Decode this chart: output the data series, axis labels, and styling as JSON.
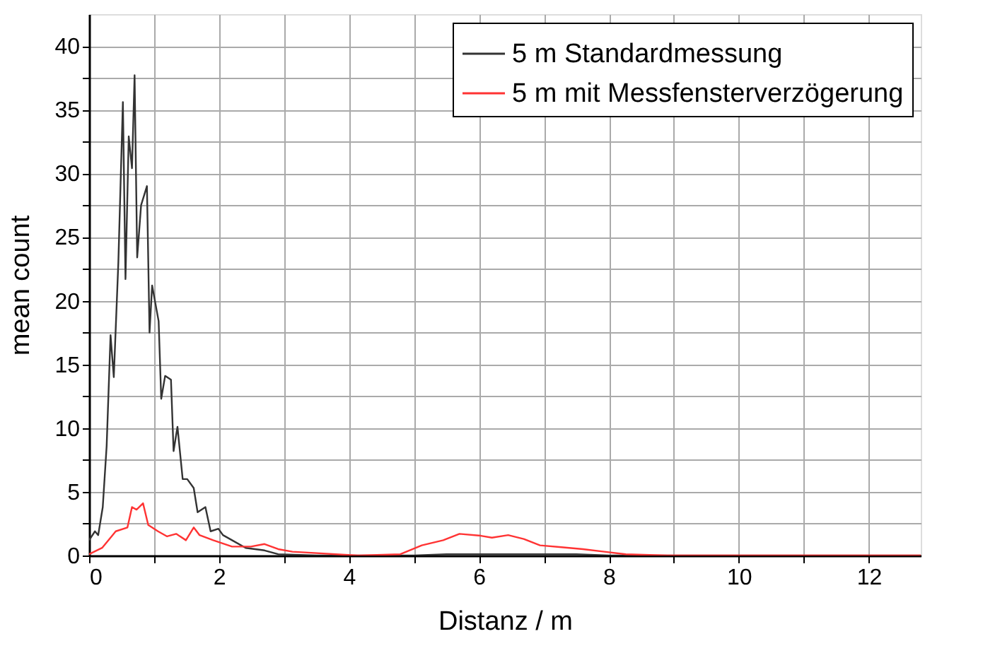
{
  "chart_data": {
    "type": "line",
    "xlabel": "Distanz / m",
    "ylabel": "mean count",
    "xlim": [
      0,
      12.8
    ],
    "ylim": [
      0,
      42.5
    ],
    "xticks": [
      0,
      {
        "value": 1,
        "label": null
      },
      2,
      {
        "value": 3,
        "label": null
      },
      4,
      {
        "value": 5,
        "label": null
      },
      6,
      {
        "value": 7,
        "label": null
      },
      8,
      {
        "value": 9,
        "label": null
      },
      10,
      {
        "value": 11,
        "label": null
      },
      12
    ],
    "yticks": [
      0,
      {
        "value": 2.5,
        "label": null
      },
      5,
      {
        "value": 7.5,
        "label": null
      },
      10,
      {
        "value": 12.5,
        "label": null
      },
      15,
      {
        "value": 17.5,
        "label": null
      },
      20,
      {
        "value": 22.5,
        "label": null
      },
      25,
      {
        "value": 27.5,
        "label": null
      },
      30,
      {
        "value": 32.5,
        "label": null
      },
      35,
      {
        "value": 37.5,
        "label": null
      },
      40
    ],
    "grid": true,
    "legend": "top right",
    "line_style": "solid",
    "marker": "none",
    "series": [
      {
        "name": "5 m Standardmessung",
        "color": "#333333",
        "x": [
          0,
          0.09,
          0.14,
          0.21,
          0.27,
          0.33,
          0.38,
          0.45,
          0.52,
          0.56,
          0.61,
          0.66,
          0.7,
          0.74,
          0.8,
          0.89,
          0.93,
          0.97,
          1.07,
          1.11,
          1.17,
          1.26,
          1.3,
          1.36,
          1.44,
          1.51,
          1.61,
          1.67,
          1.79,
          1.87,
          1.99,
          2.06,
          2.2,
          2.41,
          2.7,
          2.91,
          3.5,
          5,
          5.5,
          6.5,
          7.5,
          8,
          12.8
        ],
        "values": [
          1.2,
          1.9,
          1.6,
          3.8,
          8.6,
          17.3,
          14,
          23,
          35.6,
          21.7,
          32.9,
          30.4,
          37.7,
          23.4,
          27.5,
          29,
          17.5,
          21.2,
          18.4,
          12.3,
          14.1,
          13.8,
          8.2,
          10.1,
          6,
          6,
          5.3,
          3.4,
          3.8,
          1.9,
          2.1,
          1.6,
          1.2,
          0.6,
          0.4,
          0.1,
          0,
          0,
          0.1,
          0.1,
          0.1,
          0,
          0
        ]
      },
      {
        "name": "5 m mit Messfensterverzögerung",
        "color": "#ff3333",
        "x": [
          0,
          0.2,
          0.33,
          0.41,
          0.59,
          0.66,
          0.73,
          0.83,
          0.91,
          1.06,
          1.2,
          1.34,
          1.49,
          1.61,
          1.7,
          1.91,
          2.2,
          2.49,
          2.7,
          2.91,
          3.13,
          4.13,
          4.79,
          5.12,
          5.45,
          5.7,
          6.03,
          6.2,
          6.45,
          6.69,
          6.94,
          7.27,
          7.6,
          7.93,
          8.26,
          8.9,
          12.8
        ],
        "values": [
          0.1,
          0.6,
          1.4,
          1.9,
          2.2,
          3.8,
          3.6,
          4.1,
          2.4,
          1.9,
          1.5,
          1.7,
          1.2,
          2.2,
          1.6,
          1.2,
          0.7,
          0.7,
          0.9,
          0.5,
          0.3,
          0,
          0.1,
          0.8,
          1.2,
          1.7,
          1.55,
          1.4,
          1.6,
          1.3,
          0.8,
          0.65,
          0.5,
          0.3,
          0.1,
          0,
          0
        ]
      }
    ]
  }
}
